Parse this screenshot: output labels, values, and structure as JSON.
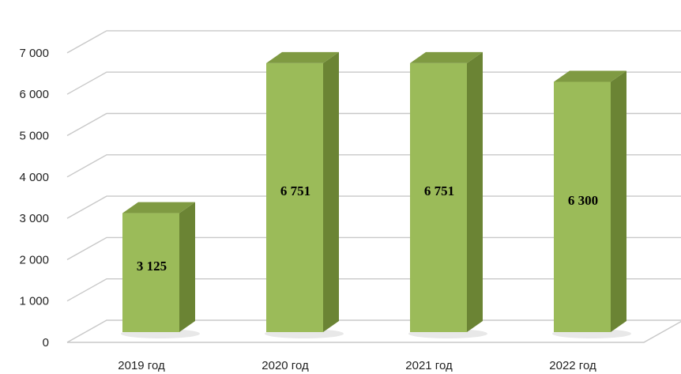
{
  "chart_data": {
    "type": "bar",
    "categories": [
      "2019 год",
      "2020 год",
      "2021 год",
      "2022 год"
    ],
    "values": [
      3125,
      6751,
      6751,
      6300
    ],
    "data_labels": [
      "3 125",
      "6 751",
      "6 751",
      "6 300"
    ],
    "y_ticks": [
      "0",
      "1 000",
      "2 000",
      "3 000",
      "4 000",
      "5 000",
      "6 000",
      "7 000"
    ],
    "ylim": [
      0,
      7000
    ],
    "grid": true,
    "legend": "none",
    "colors": {
      "bar_front": "#9bbb59",
      "bar_side": "#6b8434",
      "bar_top": "#7f9a42",
      "grid": "#c8c8c8"
    }
  }
}
